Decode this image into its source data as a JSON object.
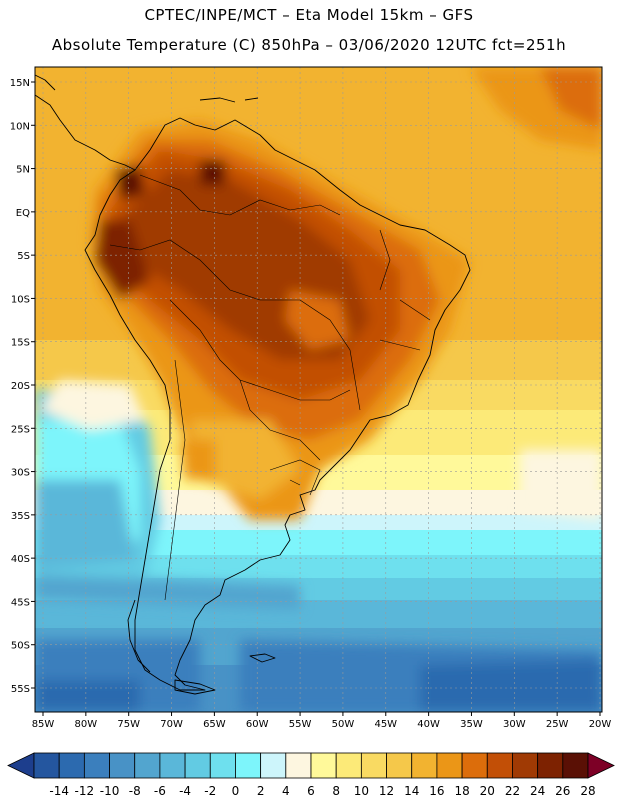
{
  "header": {
    "line1": "CPTEC/INPE/MCT –  Eta Model 15km – GFS",
    "line2": "Absolute Temperature (C) 850hPa – 03/06/2020 12UTC fct=251h"
  },
  "map": {
    "lat_ticks": [
      "15N",
      "10N",
      "5N",
      "EQ",
      "5S",
      "10S",
      "15S",
      "20S",
      "25S",
      "30S",
      "35S",
      "40S",
      "45S",
      "50S",
      "55S"
    ],
    "lon_ticks": [
      "85W",
      "80W",
      "75W",
      "70W",
      "65W",
      "60W",
      "55W",
      "50W",
      "45W",
      "40W",
      "35W",
      "30W",
      "25W",
      "20W"
    ],
    "lon_range": [
      -85,
      -20
    ],
    "lat_range": [
      -57,
      16
    ],
    "grid": true
  },
  "colorbar": {
    "labels": [
      "-14",
      "-12",
      "-10",
      "-8",
      "-6",
      "-4",
      "-2",
      "0",
      "2",
      "4",
      "6",
      "8",
      "10",
      "12",
      "14",
      "16",
      "18",
      "20",
      "22",
      "24",
      "26",
      "28"
    ],
    "colors": [
      "#1d3e8d",
      "#24569f",
      "#2c6aaf",
      "#3b7fbd",
      "#4892c6",
      "#52a5cf",
      "#5ab7d9",
      "#62cbe3",
      "#6ee0ee",
      "#7df5fb",
      "#cdf5fb",
      "#fdf6e0",
      "#fff99a",
      "#fcea78",
      "#f9da62",
      "#f5c84a",
      "#f2b330",
      "#eb9617",
      "#dc6d0b",
      "#c24f06",
      "#a03a04",
      "#7d2201",
      "#5a1005",
      "#7d0026"
    ]
  }
}
